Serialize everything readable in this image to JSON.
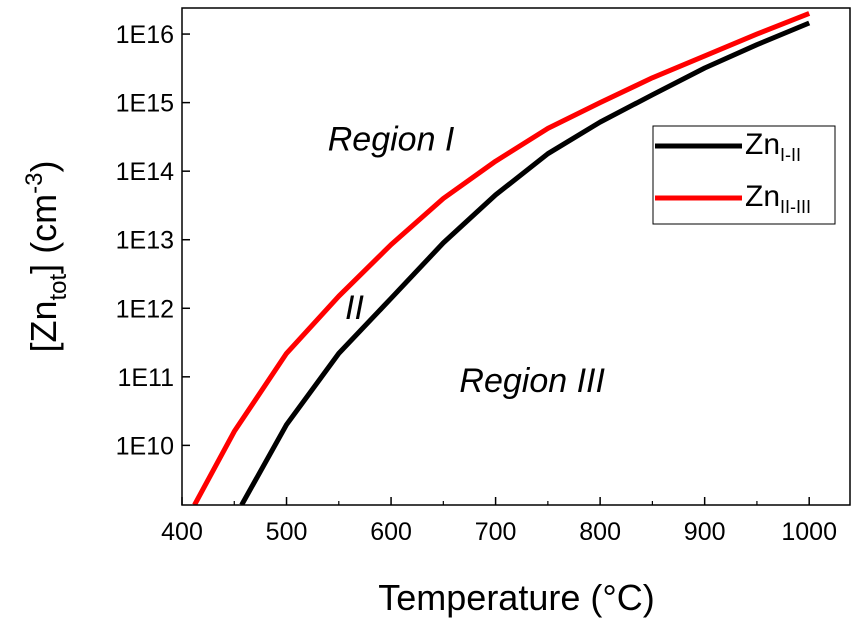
{
  "chart_data": {
    "type": "line",
    "title": "",
    "xlabel": "Temperature (°C)",
    "ylabel": {
      "main": "[Zn",
      "sub": "tot",
      "close": "] (cm",
      "sup": "-3",
      "end": ")"
    },
    "xscale": "linear",
    "yscale": "log",
    "xlim": [
      400,
      1040
    ],
    "ylim": [
      1350000000.0,
      2.4e+16
    ],
    "xticks": [
      400,
      500,
      600,
      700,
      800,
      900,
      1000
    ],
    "xtick_labels": [
      "400",
      "500",
      "600",
      "700",
      "800",
      "900",
      "1000"
    ],
    "yticks": [
      10000000000.0,
      100000000000.0,
      1000000000000.0,
      10000000000000.0,
      100000000000000.0,
      1000000000000000.0,
      1e+16
    ],
    "ytick_labels": [
      "1E10",
      "1E11",
      "1E12",
      "1E13",
      "1E14",
      "1E15",
      "1E16"
    ],
    "grid": false,
    "legend_position": "right",
    "series": [
      {
        "name": {
          "base": "Zn",
          "sub": "I-II"
        },
        "color": "#000000",
        "x": [
          457,
          500,
          550,
          600,
          650,
          700,
          750,
          800,
          850,
          900,
          950,
          1000
        ],
        "y": [
          1350000000.0,
          20000000000.0,
          220000000000.0,
          1400000000000.0,
          9000000000000.0,
          45000000000000.0,
          180000000000000.0,
          520000000000000.0,
          1300000000000000.0,
          3200000000000000.0,
          7000000000000000.0,
          1.45e+16
        ]
      },
      {
        "name": {
          "base": "Zn",
          "sub": "II-III"
        },
        "color": "#ff0000",
        "x": [
          412,
          450,
          500,
          550,
          600,
          650,
          700,
          750,
          800,
          850,
          900,
          950,
          1000
        ],
        "y": [
          1350000000.0,
          16000000000.0,
          220000000000.0,
          1500000000000.0,
          8500000000000.0,
          40000000000000.0,
          140000000000000.0,
          420000000000000.0,
          1000000000000000.0,
          2300000000000000.0,
          4800000000000000.0,
          1e+16,
          2e+16
        ]
      }
    ],
    "annotations": [
      {
        "text": "Region I",
        "x": 600,
        "y": 200000000000000.0
      },
      {
        "text": "II",
        "x": 565,
        "y": 700000000000.0
      },
      {
        "text": "Region III",
        "x": 735,
        "y": 60000000000.0
      }
    ]
  }
}
